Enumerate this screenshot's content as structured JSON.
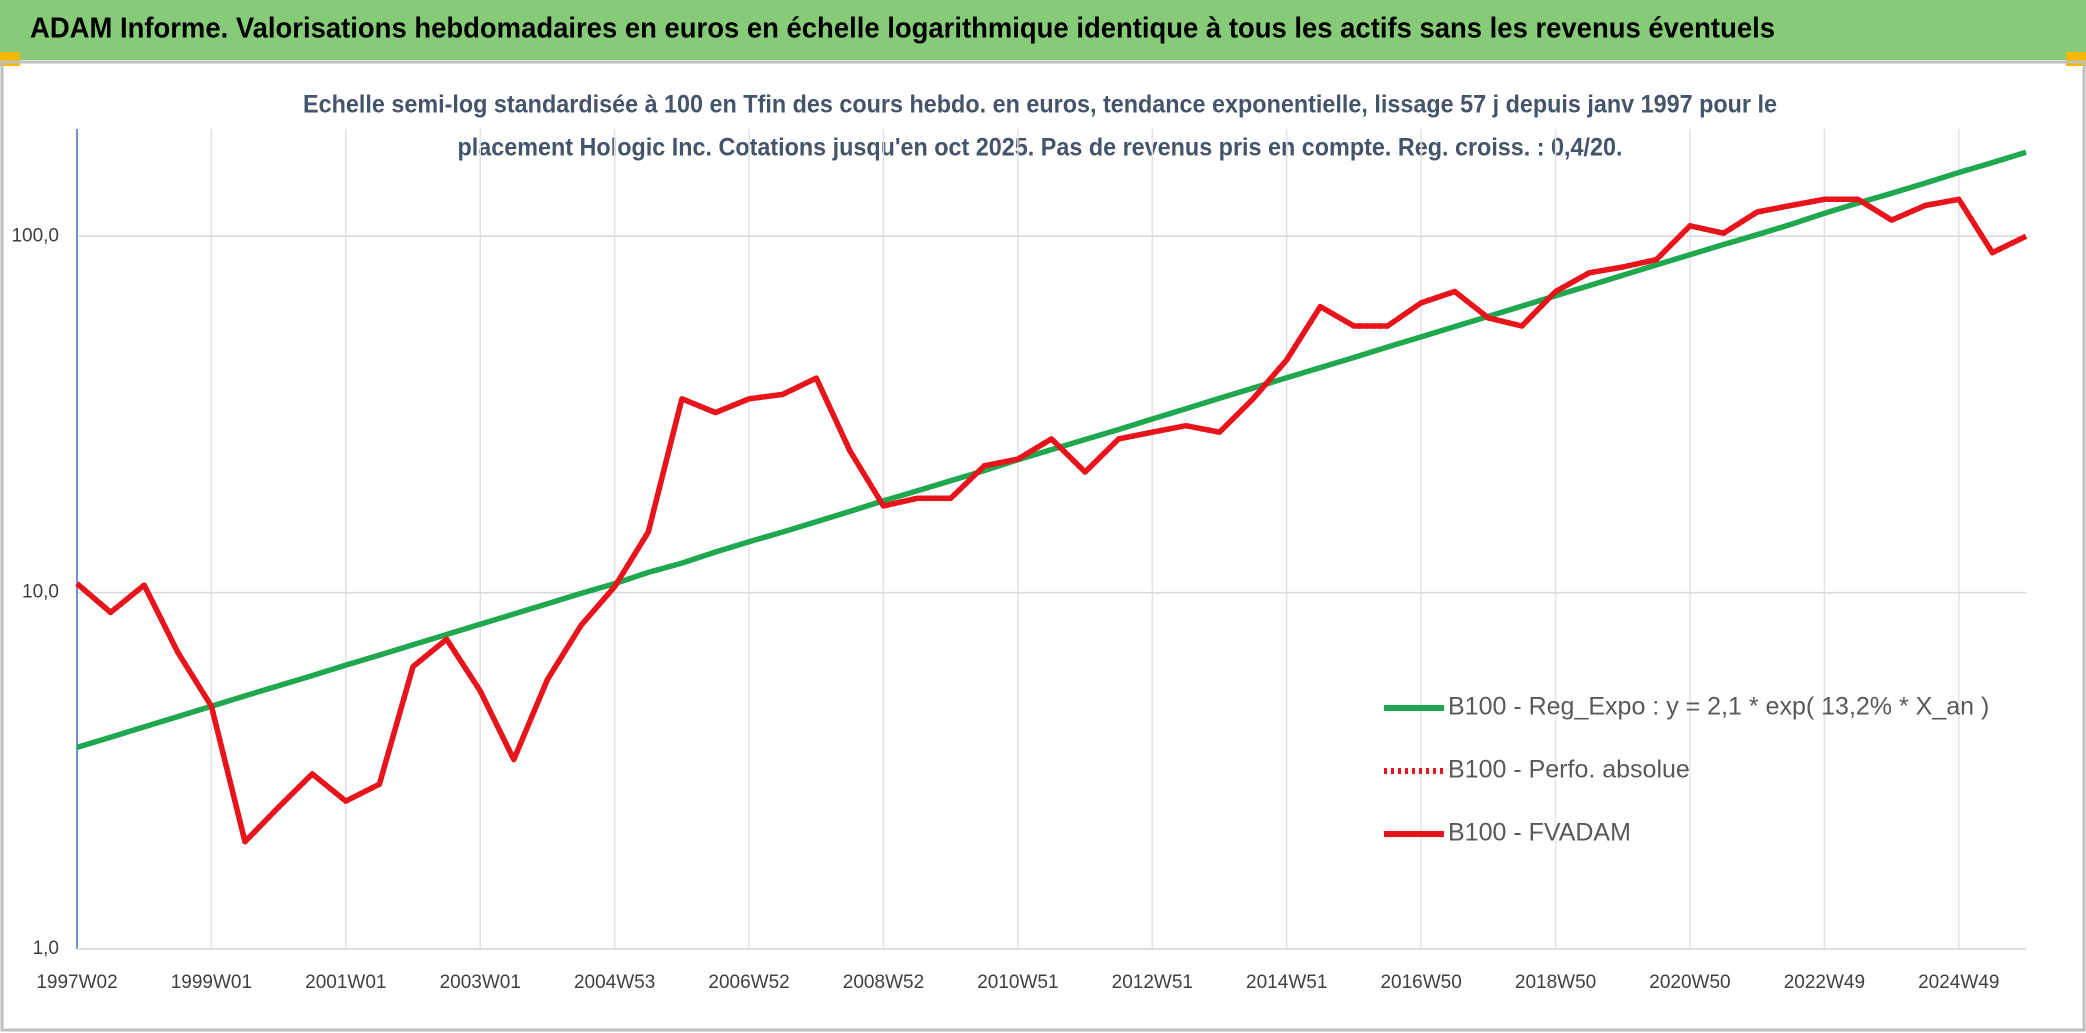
{
  "chart_data": {
    "type": "line",
    "title": "ADAM Informe. Valorisations hebdomadaires en euros en échelle logarithmique identique à tous les actifs sans les revenus éventuels",
    "subtitle": [
      "Echelle semi-log standardisée à 100 en Tfin des cours hebdo. en euros, tendance exponentielle, lissage 57 j depuis janv 1997 pour le",
      "placement Hologic Inc. Cotations jusqu'en oct 2025. Pas de revenus pris en compte. Reg. croiss. : 0,4/20."
    ],
    "categories": [
      "1997W02",
      null,
      null,
      null,
      "1999W01",
      null,
      null,
      null,
      "2001W01",
      null,
      null,
      null,
      "2003W01",
      null,
      null,
      null,
      "2004W53",
      null,
      null,
      null,
      "2006W52",
      null,
      null,
      null,
      "2008W52",
      null,
      null,
      null,
      "2010W51",
      null,
      null,
      null,
      "2012W51",
      null,
      null,
      null,
      "2014W51",
      null,
      null,
      null,
      "2016W50",
      null,
      null,
      null,
      "2018W50",
      null,
      null,
      null,
      "2020W50",
      null,
      null,
      null,
      "2022W49",
      null,
      null,
      null,
      "2024W49",
      null,
      null
    ],
    "log_scale": true,
    "grid": true,
    "legend": "right",
    "ylim": [
      1,
      200
    ],
    "yticks": [
      {
        "value": 1,
        "label": "1,0"
      },
      {
        "value": 10,
        "label": "10,0"
      },
      {
        "value": 100,
        "label": "100,0"
      }
    ],
    "series": [
      {
        "name": "B100 - Reg_Expo : y = 2,1 * exp( 13,2% *  X_an )",
        "color": "#1fa84f",
        "style": "solid",
        "values": [
          3.68,
          3.93,
          4.2,
          4.49,
          4.8,
          5.13,
          5.48,
          5.85,
          6.26,
          6.68,
          7.14,
          7.63,
          8.15,
          8.71,
          9.31,
          9.95,
          10.6,
          11.4,
          12.1,
          13.0,
          13.9,
          14.8,
          15.8,
          16.9,
          18.1,
          19.3,
          20.6,
          22.0,
          23.6,
          25.2,
          26.9,
          28.7,
          30.7,
          32.8,
          35.1,
          37.5,
          40.1,
          42.8,
          45.7,
          48.9,
          52.2,
          55.8,
          59.6,
          63.7,
          68.1,
          72.7,
          77.7,
          83.1,
          88.8,
          94.8,
          101,
          108,
          116,
          124,
          132,
          141,
          151,
          161,
          172
        ]
      },
      {
        "name": "B100 - Perfo. absolue",
        "color": "#e8141b",
        "style": "dotted",
        "values": [
          10.6,
          8.8,
          10.5,
          6.8,
          4.8,
          2.0,
          2.5,
          3.1,
          2.6,
          2.9,
          6.2,
          7.4,
          5.3,
          3.4,
          5.7,
          8.1,
          10.4,
          14.8,
          35,
          32,
          35,
          36,
          40,
          25,
          17.5,
          18.4,
          18.4,
          22.7,
          23.7,
          27.0,
          21.8,
          27.0,
          28.2,
          29.4,
          28.2,
          35,
          45,
          63.5,
          56,
          56,
          65,
          70,
          59,
          56,
          70,
          79,
          82,
          86,
          107,
          102,
          117,
          122,
          127,
          127,
          111,
          122,
          127,
          90,
          100
        ]
      },
      {
        "name": "B100 - FVADAM",
        "color": "#e8141b",
        "style": "solid",
        "values": [
          10.6,
          8.8,
          10.5,
          6.8,
          4.8,
          2.0,
          2.5,
          3.1,
          2.6,
          2.9,
          6.2,
          7.4,
          5.3,
          3.4,
          5.7,
          8.1,
          10.4,
          14.8,
          35,
          32,
          35,
          36,
          40,
          25,
          17.5,
          18.4,
          18.4,
          22.7,
          23.7,
          27.0,
          21.8,
          27.0,
          28.2,
          29.4,
          28.2,
          35,
          45,
          63.5,
          56,
          56,
          65,
          70,
          59,
          56,
          70,
          79,
          82,
          86,
          107,
          102,
          117,
          122,
          127,
          127,
          111,
          122,
          127,
          90,
          100
        ]
      }
    ]
  }
}
